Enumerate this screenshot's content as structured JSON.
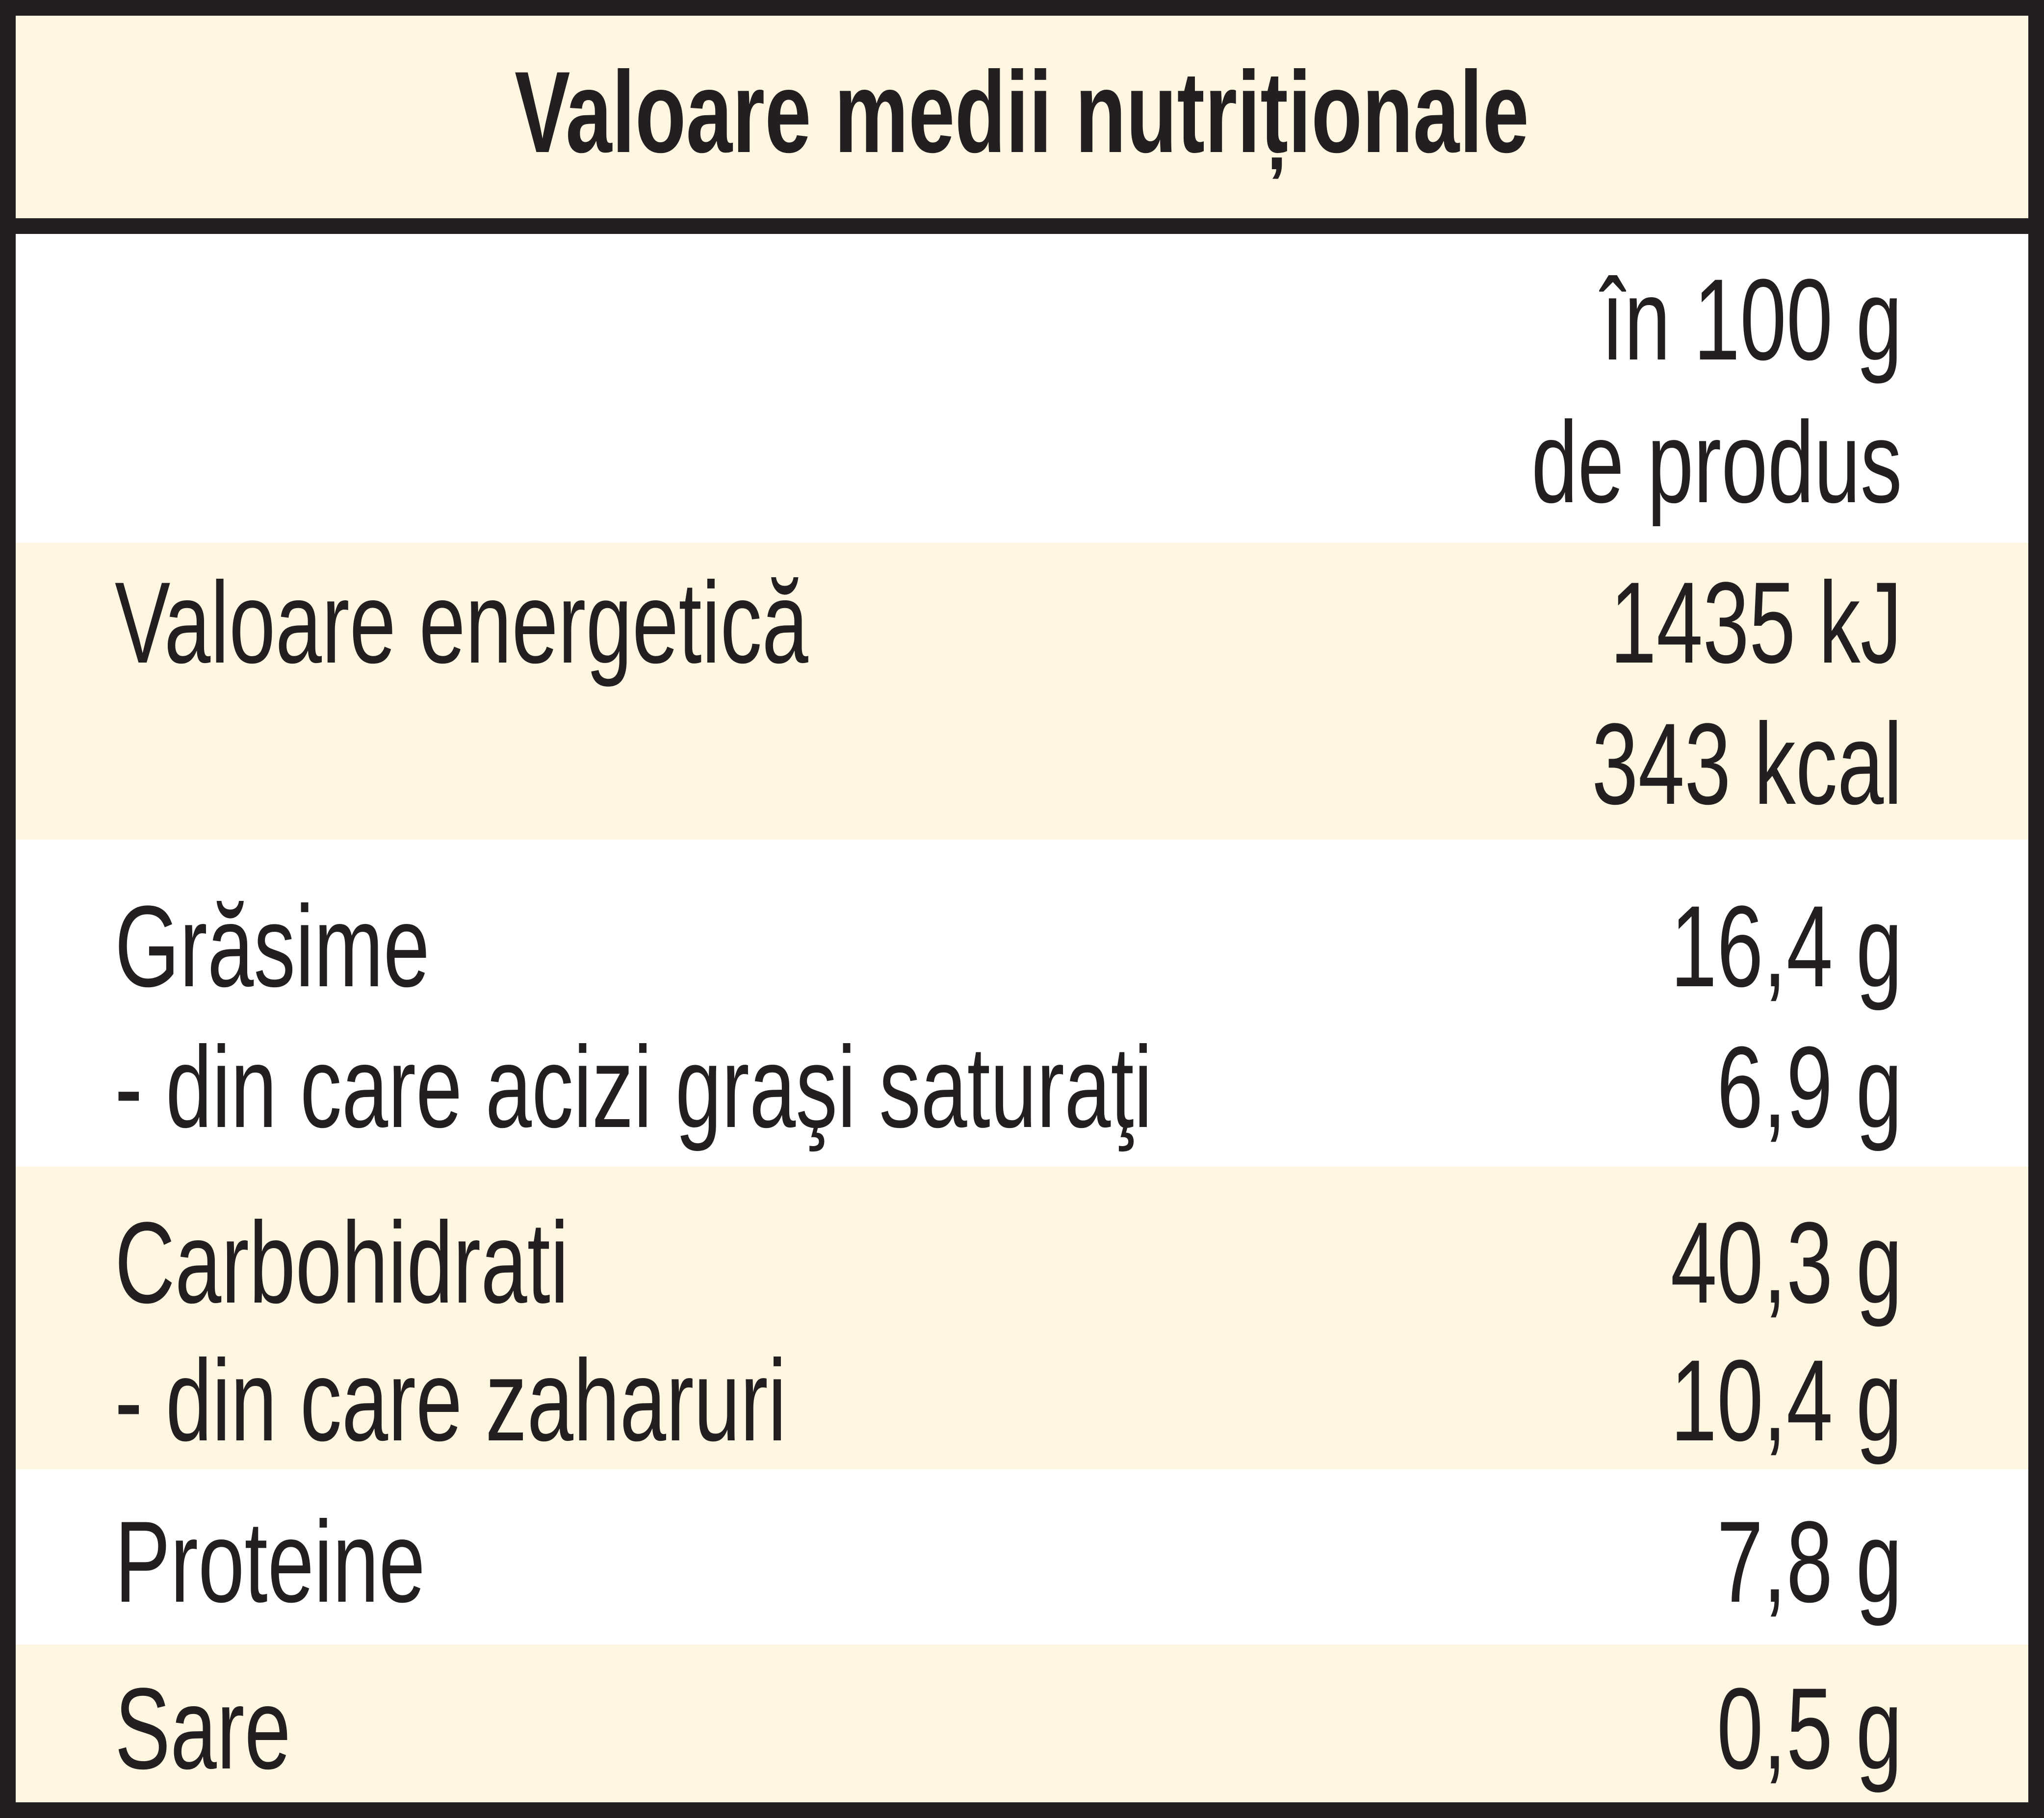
{
  "title": "Valoare medii nutriționale",
  "column_header": [
    "în 100 g",
    "de produs"
  ],
  "rows": [
    {
      "label": "Valoare energetică",
      "values": [
        "1435 kJ",
        "343 kcal"
      ]
    },
    {
      "label": "Grăsime",
      "value": "16,4 g"
    },
    {
      "label": "- din care acizi graşi saturaţi",
      "value": "6,9 g"
    },
    {
      "label": "Carbohidrati",
      "value": "40,3 g"
    },
    {
      "label": "- din care zaharuri",
      "value": "10,4 g"
    },
    {
      "label": "Proteine",
      "value": "7,8 g"
    },
    {
      "label": "Sare",
      "value": "0,5 g"
    }
  ],
  "colors": {
    "border": "#231f20",
    "shaded_band": "#fef6e0",
    "white_band": "#ffffff",
    "text": "#231f20"
  }
}
